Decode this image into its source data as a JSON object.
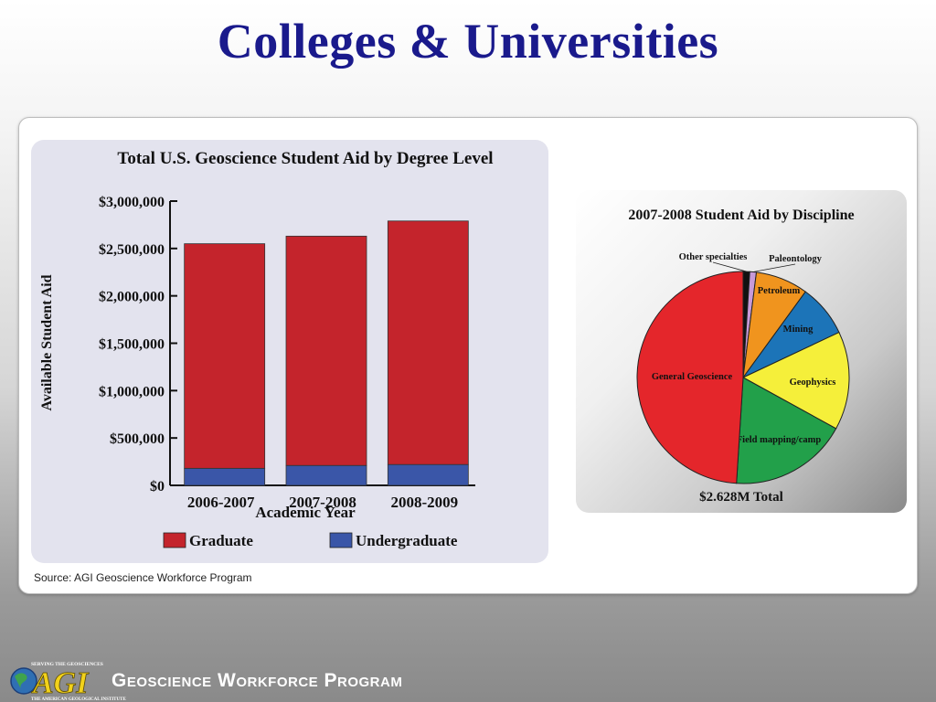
{
  "slide": {
    "title": "Colleges & Universities",
    "source": "Source: AGI Geoscience Workforce Program"
  },
  "footer": {
    "program": "Geoscience Workforce Program",
    "logo_top": "SERVING THE GEOSCIENCES",
    "logo_text": "AGI",
    "logo_bottom": "THE AMERICAN GEOLOGICAL INSTITUTE"
  },
  "chart_data": [
    {
      "type": "bar",
      "stacked": true,
      "title": "Total U.S. Geoscience Student Aid by Degree Level",
      "xlabel": "Academic Year",
      "ylabel": "Available Student Aid",
      "categories": [
        "2006-2007",
        "2007-2008",
        "2008-2009"
      ],
      "ylim": [
        0,
        3000000
      ],
      "yticks": [
        0,
        500000,
        1000000,
        1500000,
        2000000,
        2500000,
        3000000
      ],
      "ytick_labels": [
        "$0",
        "$500,000",
        "$1,000,000",
        "$1,500,000",
        "$2,000,000",
        "$2,500,000",
        "$3,000,000"
      ],
      "series": [
        {
          "name": "Undergraduate",
          "color": "#3a56a8",
          "values": [
            180000,
            210000,
            220000
          ]
        },
        {
          "name": "Graduate",
          "color": "#c4242c",
          "values": [
            2370000,
            2420000,
            2570000
          ]
        }
      ],
      "legend_order": [
        "Graduate",
        "Undergraduate"
      ],
      "legend": "bottom",
      "grid": false
    },
    {
      "type": "pie",
      "title": "2007-2008 Student Aid by Discipline",
      "caption": "$2.628M Total",
      "slices": [
        {
          "label": "Other specialties",
          "value": 1.0,
          "color": "#111111"
        },
        {
          "label": "Paleontology",
          "value": 1.0,
          "color": "#c89ad8"
        },
        {
          "label": "Petroleum",
          "value": 8.0,
          "color": "#f0941e"
        },
        {
          "label": "Mining",
          "value": 8.0,
          "color": "#1c74b8"
        },
        {
          "label": "Geophysics",
          "value": 15.0,
          "color": "#f5ef3a"
        },
        {
          "label": "Field mapping/camp",
          "value": 18.0,
          "color": "#22a04a"
        },
        {
          "label": "General Geoscience",
          "value": 49.0,
          "color": "#e4262b"
        }
      ]
    }
  ]
}
